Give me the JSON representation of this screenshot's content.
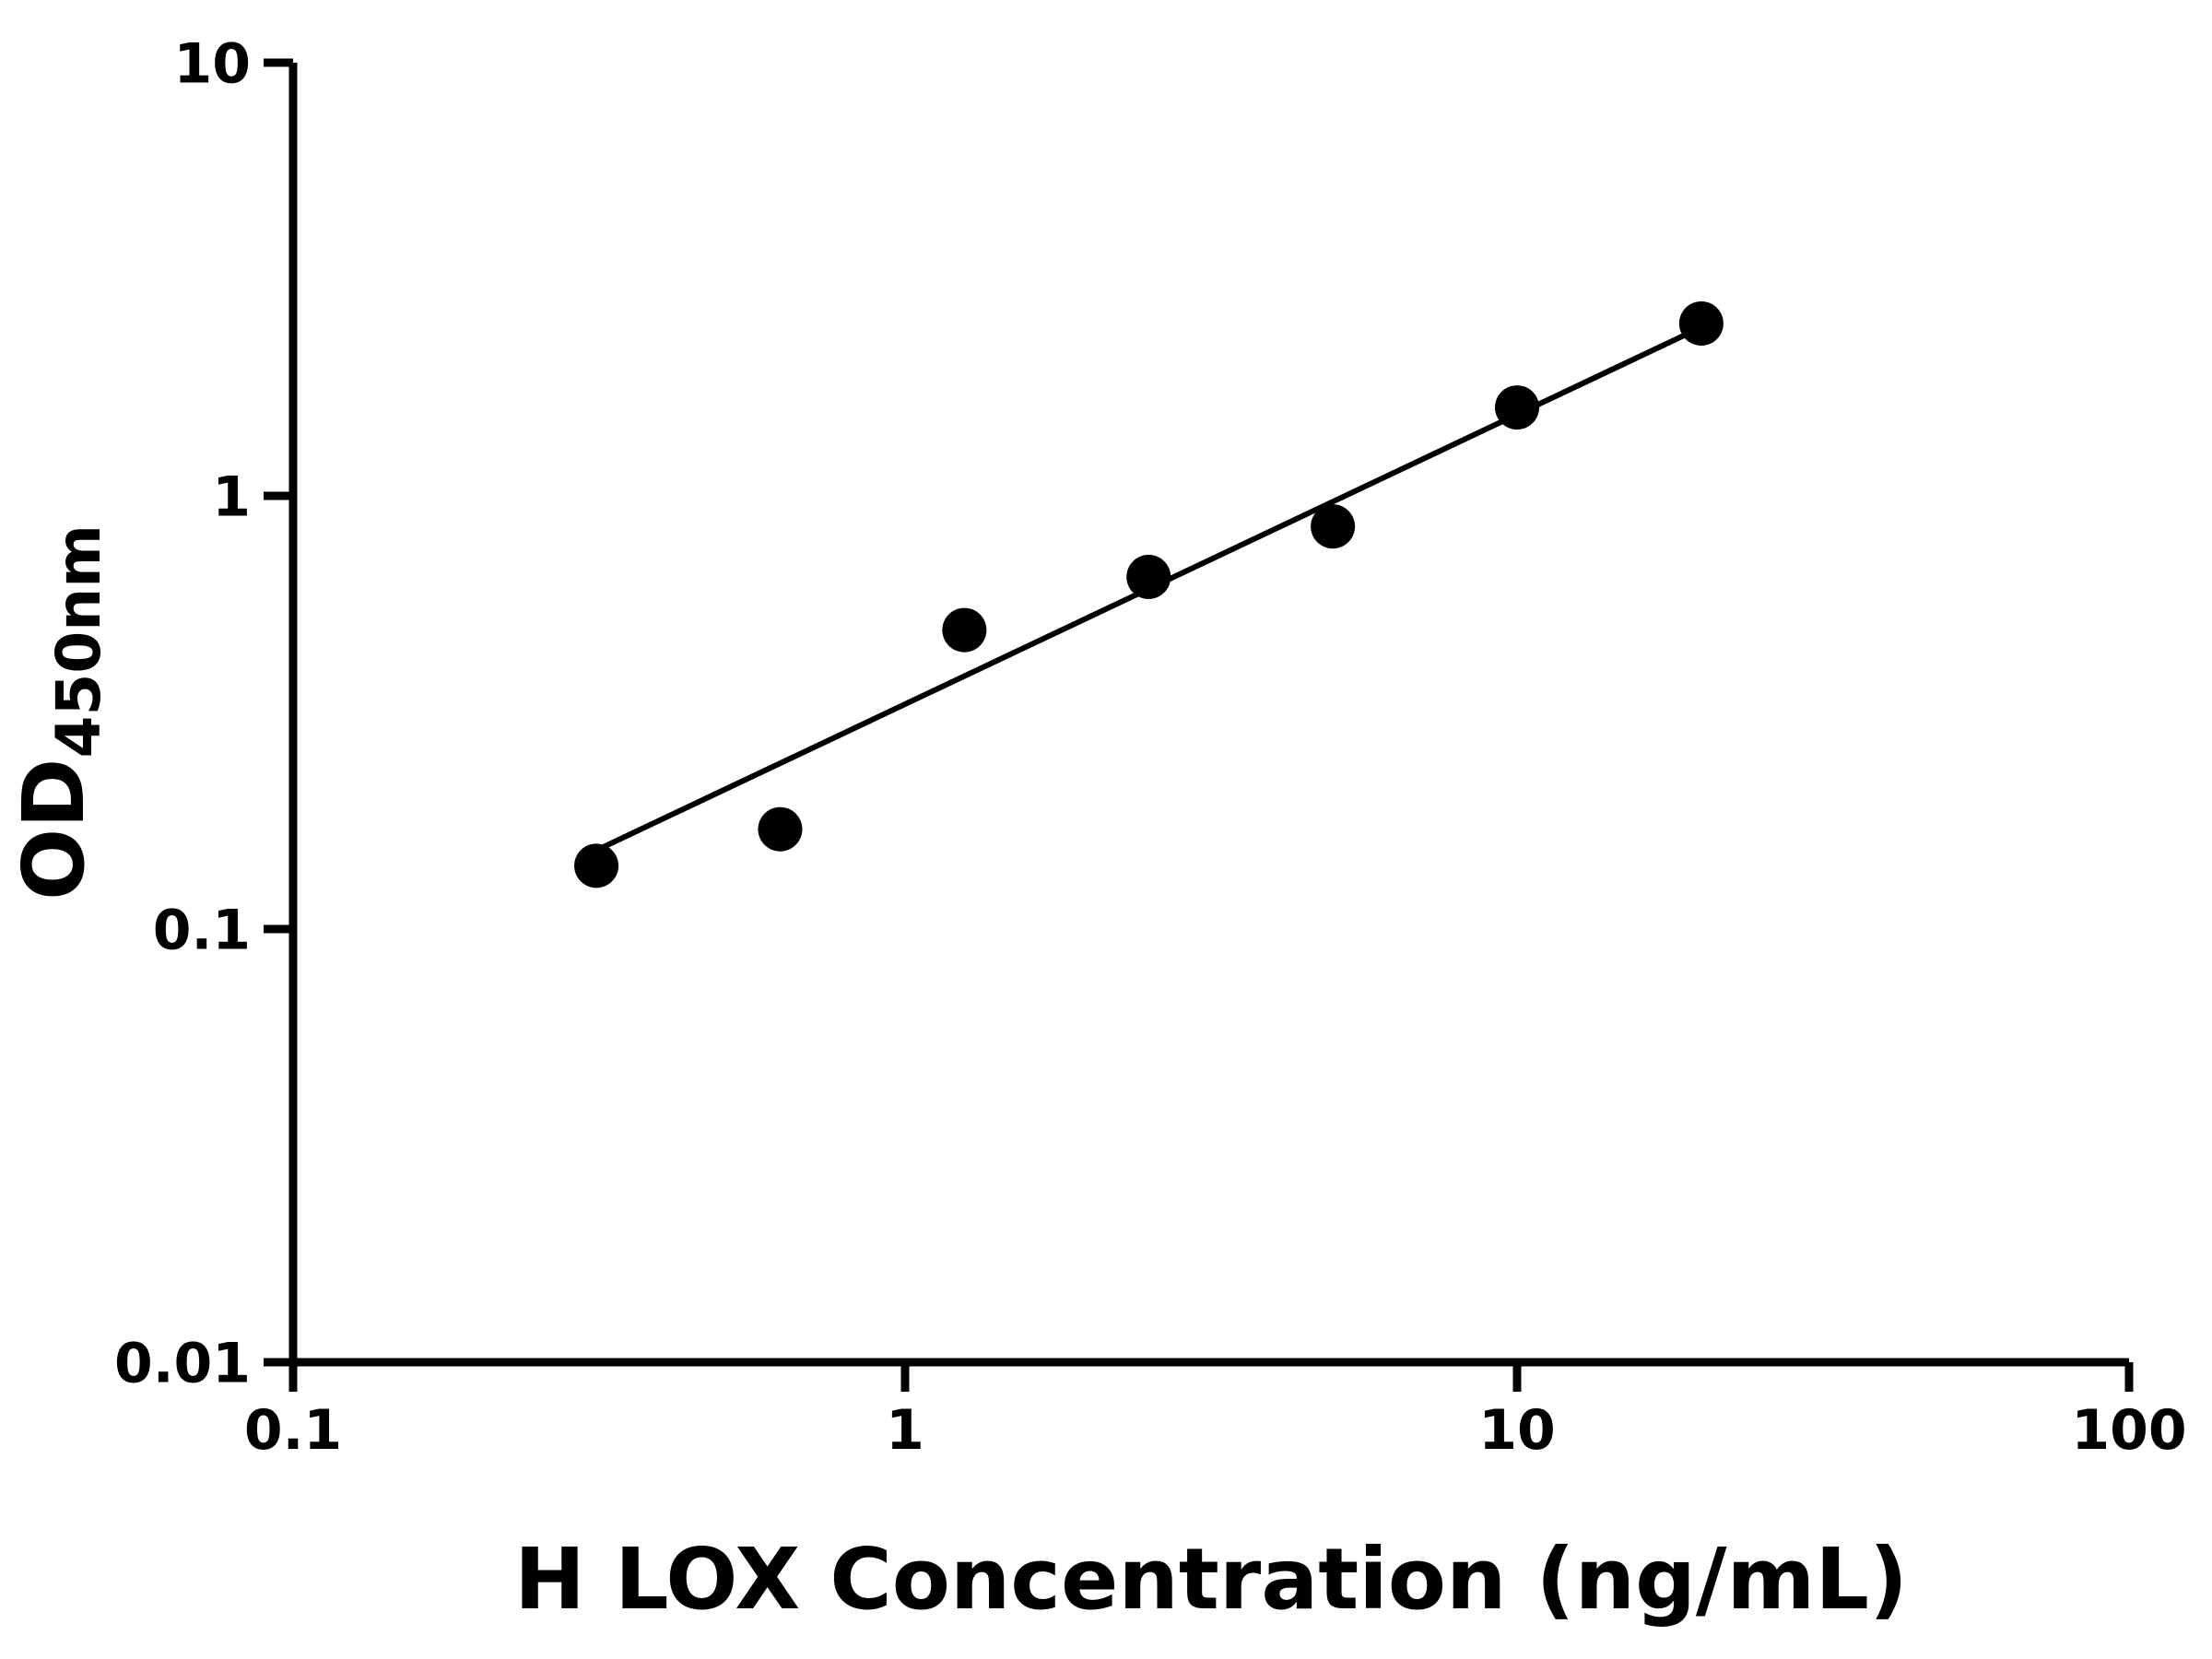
{
  "chart_data": {
    "type": "scatter",
    "title": "",
    "xlabel": "H LOX Concentration (ng/mL)",
    "ylabel": "OD",
    "ylabel_subscript": "450nm",
    "x_scale": "log",
    "y_scale": "log",
    "xlim": [
      0.1,
      100
    ],
    "ylim": [
      0.01,
      10
    ],
    "x_ticks": [
      0.1,
      1,
      10,
      100
    ],
    "x_tick_labels": [
      "0.1",
      "1",
      "10",
      "100"
    ],
    "y_ticks": [
      0.01,
      0.1,
      1,
      10
    ],
    "y_tick_labels": [
      "0.01",
      "0.1",
      "1",
      "10"
    ],
    "grid": false,
    "legend": false,
    "series": [
      {
        "name": "fit-line",
        "type": "line",
        "color": "#000000",
        "points": [
          {
            "x": 0.313,
            "y": 0.152
          },
          {
            "x": 20,
            "y": 2.45
          }
        ]
      },
      {
        "name": "standard-curve-points",
        "type": "scatter",
        "marker": "circle",
        "color": "#000000",
        "points": [
          {
            "x": 0.313,
            "y": 0.14
          },
          {
            "x": 0.625,
            "y": 0.17
          },
          {
            "x": 1.25,
            "y": 0.49
          },
          {
            "x": 2.5,
            "y": 0.65
          },
          {
            "x": 5,
            "y": 0.85
          },
          {
            "x": 10,
            "y": 1.6
          },
          {
            "x": 20,
            "y": 2.5
          }
        ]
      }
    ]
  },
  "colors": {
    "foreground": "#000000",
    "background": "#ffffff"
  }
}
